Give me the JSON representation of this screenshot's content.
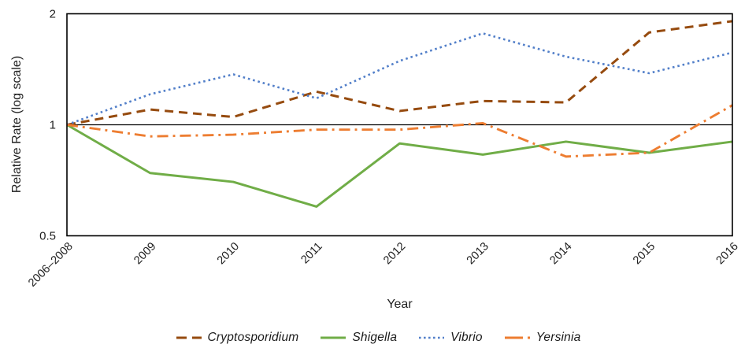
{
  "chart_data": {
    "type": "line",
    "title": "",
    "xlabel": "Year",
    "ylabel": "Relative Rate (log scale)",
    "y_scale": "log",
    "ylim": [
      0.5,
      2
    ],
    "yticks": [
      {
        "value": 2,
        "label": "2"
      },
      {
        "value": 1,
        "label": "1"
      },
      {
        "value": 0.5,
        "label": "0.5"
      }
    ],
    "reference_line": 1,
    "grid": false,
    "legend_position": "bottom",
    "categories": [
      "2006–2008",
      "2009",
      "2010",
      "2011",
      "2012",
      "2013",
      "2014",
      "2015",
      "2016"
    ],
    "series": [
      {
        "name": "Cryptosporidium",
        "style": "dashed",
        "color": "#964B0F",
        "values": [
          1.0,
          1.1,
          1.05,
          1.23,
          1.09,
          1.16,
          1.15,
          1.78,
          1.91
        ]
      },
      {
        "name": "Shigella",
        "style": "solid",
        "color": "#70AD47",
        "values": [
          1.0,
          0.74,
          0.7,
          0.6,
          0.89,
          0.83,
          0.9,
          0.84,
          0.9
        ]
      },
      {
        "name": "Vibrio",
        "style": "dotted",
        "color": "#527FC9",
        "values": [
          1.0,
          1.21,
          1.37,
          1.18,
          1.49,
          1.77,
          1.53,
          1.38,
          1.57
        ]
      },
      {
        "name": "Yersinia",
        "style": "dashdot",
        "color": "#ED7D31",
        "values": [
          1.0,
          0.93,
          0.94,
          0.97,
          0.97,
          1.01,
          0.82,
          0.84,
          1.13
        ]
      }
    ],
    "colors": {
      "axis": "#000000",
      "text": "#1f1f1f",
      "background": "#ffffff"
    }
  }
}
